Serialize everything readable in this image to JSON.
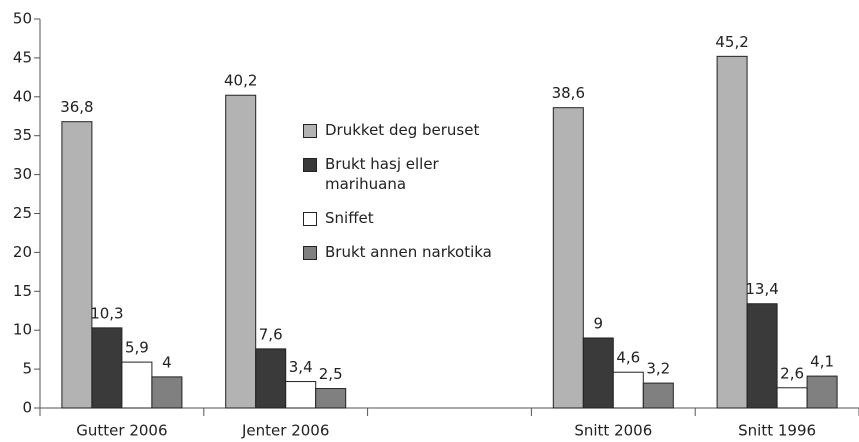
{
  "chart_data": {
    "type": "bar",
    "categories": [
      "Gutter 2006",
      "Jenter 2006",
      null,
      "Snitt 2006",
      "Snitt 1996"
    ],
    "series": [
      {
        "name": "Drukket deg beruset",
        "color": "#b3b3b3",
        "values": [
          36.8,
          40.2,
          null,
          38.6,
          45.2
        ],
        "value_labels": [
          "36,8",
          "40,2",
          null,
          "38,6",
          "45,2"
        ]
      },
      {
        "name": "Brukt hasj eller marihuana",
        "color": "#3a3a3a",
        "values": [
          10.3,
          7.6,
          null,
          9,
          13.4
        ],
        "value_labels": [
          "10,3",
          "7,6",
          null,
          "9",
          "13,4"
        ]
      },
      {
        "name": "Sniffet",
        "color": "#ffffff",
        "values": [
          5.9,
          3.4,
          null,
          4.6,
          2.6
        ],
        "value_labels": [
          "5,9",
          "3,4",
          null,
          "4,6",
          "2,6"
        ]
      },
      {
        "name": "Brukt annen narkotika",
        "color": "#808080",
        "values": [
          4,
          2.5,
          null,
          3.2,
          4.1
        ],
        "value_labels": [
          "4",
          "2,5",
          null,
          "3,2",
          "4,1"
        ]
      }
    ],
    "ylim": [
      0,
      50
    ],
    "yticks": [
      0,
      5,
      10,
      15,
      20,
      25,
      30,
      35,
      40,
      45,
      50
    ],
    "grid": false,
    "legend": "center"
  }
}
